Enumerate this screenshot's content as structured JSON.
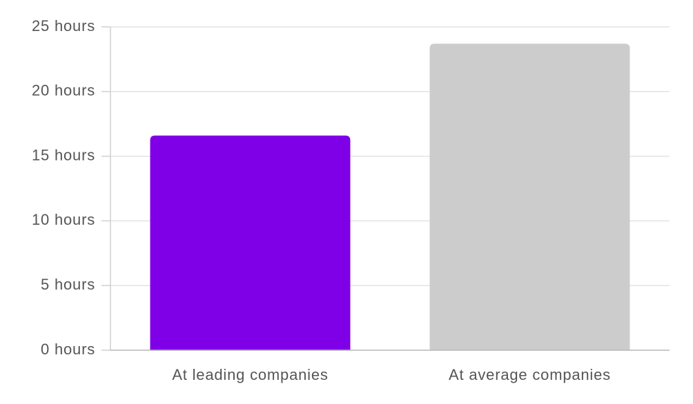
{
  "chart_data": {
    "type": "bar",
    "categories": [
      "At leading companies",
      "At average companies"
    ],
    "values": [
      16.6,
      23.7
    ],
    "colors": [
      "#7f00e6",
      "#cccccc"
    ],
    "ylim": [
      0,
      25
    ],
    "yticks": [
      {
        "value": 0,
        "label": "0 hours"
      },
      {
        "value": 5,
        "label": "5 hours"
      },
      {
        "value": 10,
        "label": "10 hours"
      },
      {
        "value": 15,
        "label": "15 hours"
      },
      {
        "value": 20,
        "label": "20 hours"
      },
      {
        "value": 25,
        "label": "25 hours"
      }
    ],
    "grid": true
  }
}
